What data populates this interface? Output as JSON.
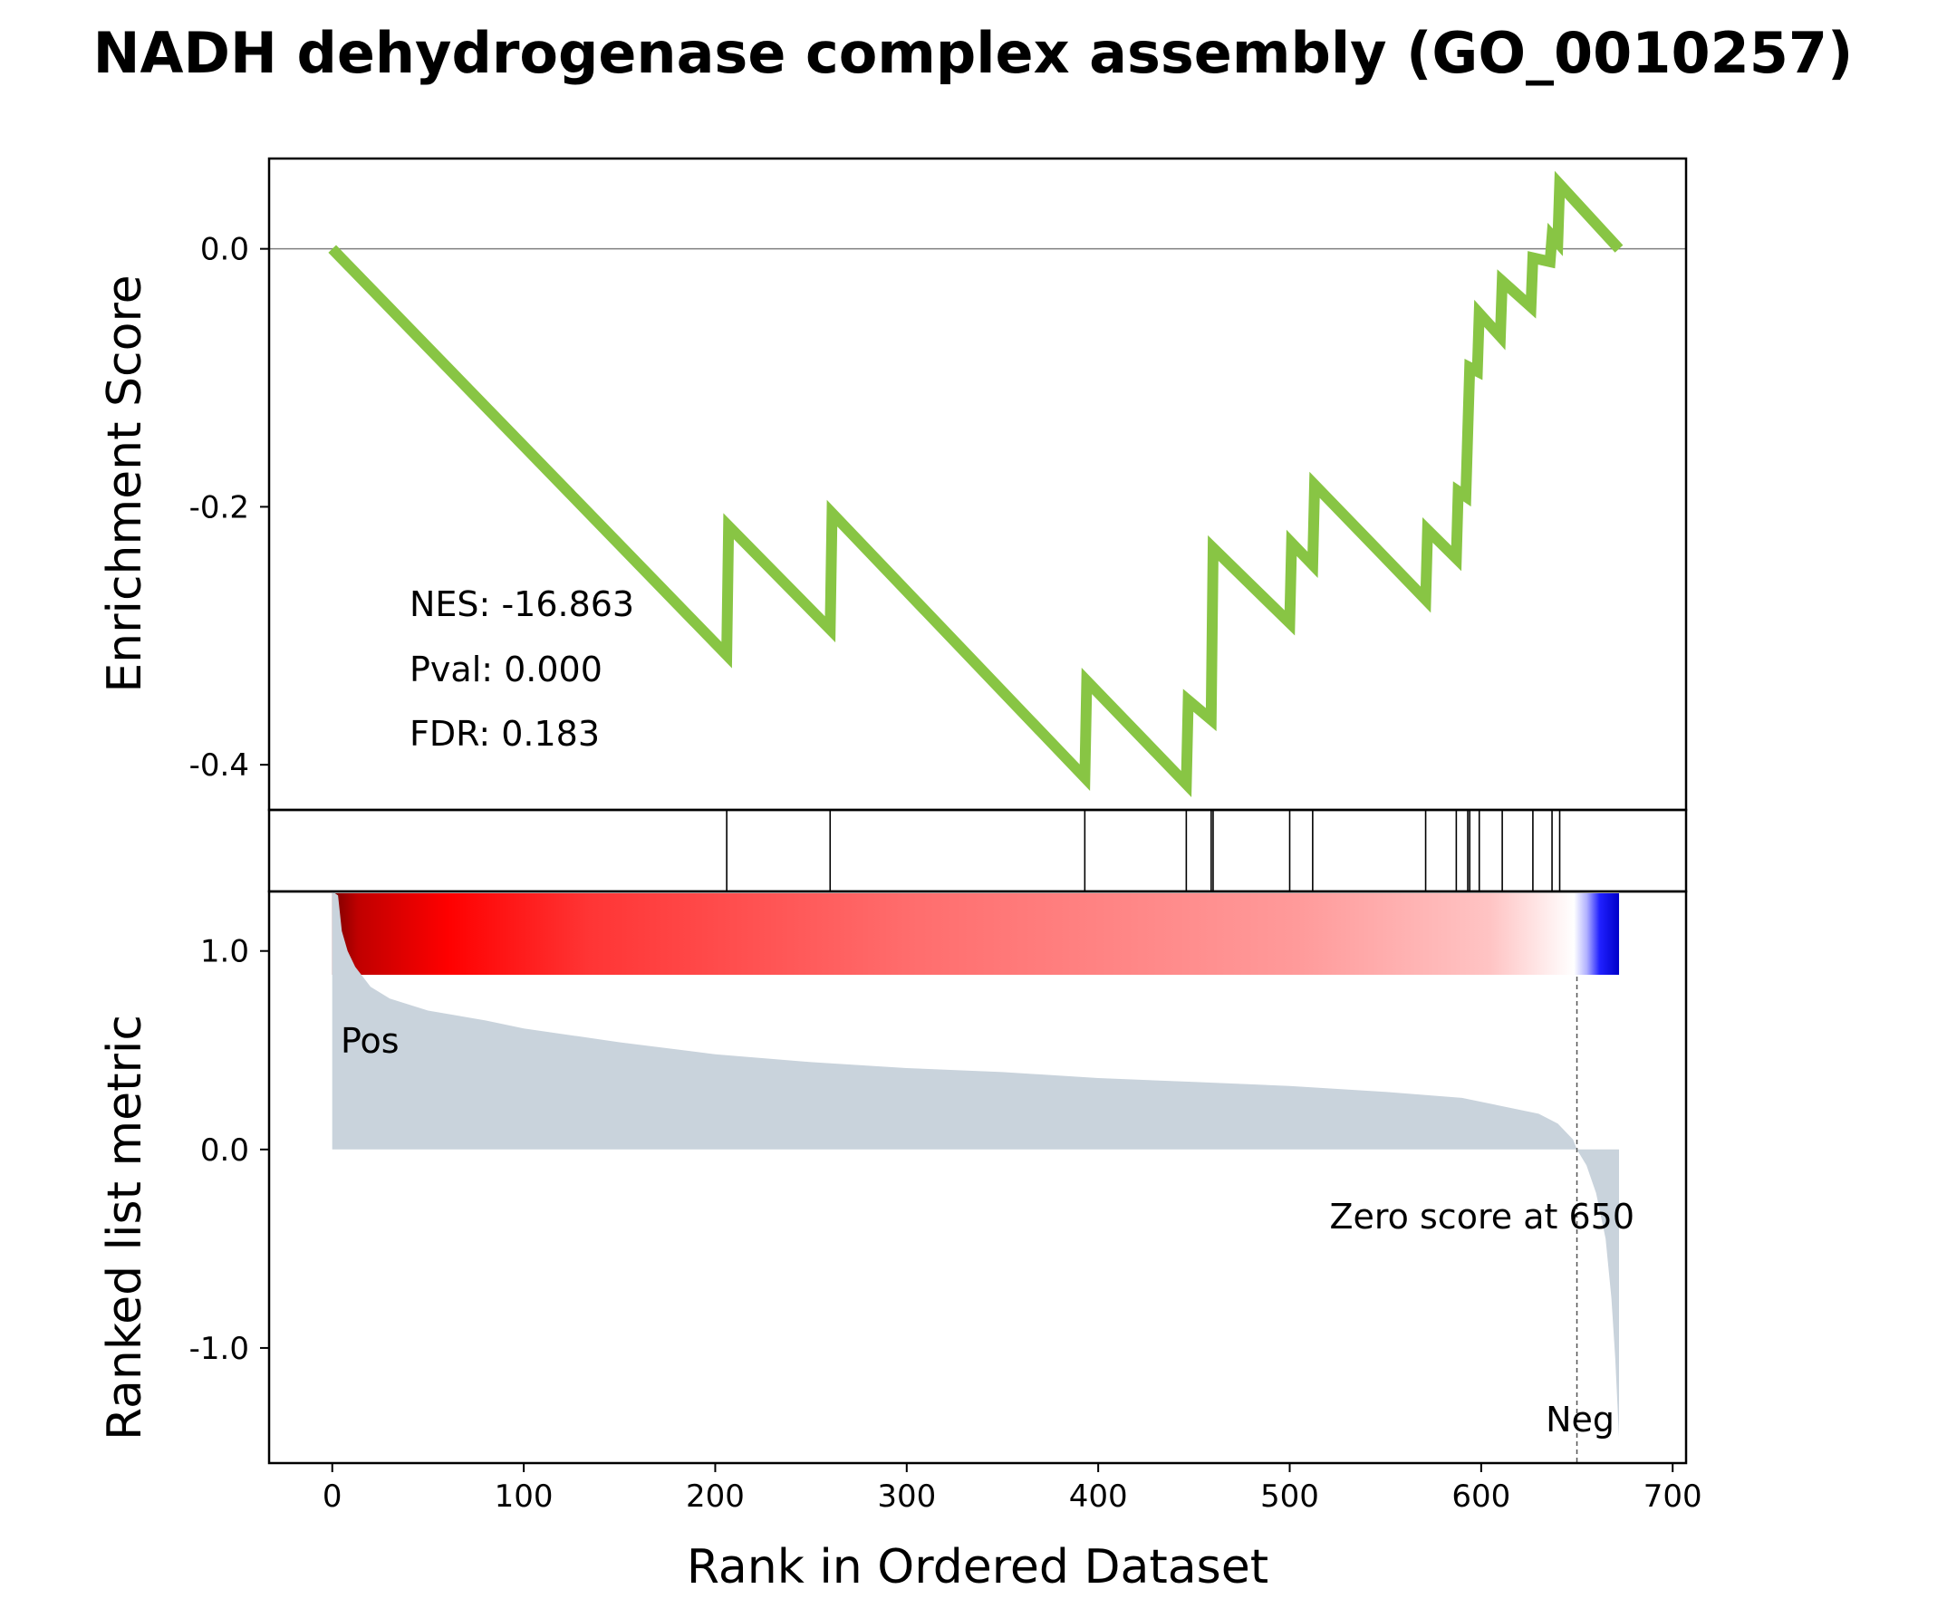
{
  "chart_data": {
    "type": "line",
    "title": "NADH dehydrogenase complex assembly (GO_0010257)",
    "xlabel": "Rank in Ordered Dataset",
    "xlim": [
      -33,
      707
    ],
    "x_ticks": [
      "0",
      "100",
      "200",
      "300",
      "400",
      "500",
      "600",
      "700"
    ],
    "x_tick_values": [
      0,
      100,
      200,
      300,
      400,
      500,
      600,
      700
    ],
    "colors": {
      "es_line": "#88c544",
      "metric_fill": "#c9d3dc",
      "pos_label": "#ff0000",
      "neg_label": "#0000ff"
    },
    "enrichment_panel": {
      "ylabel": "Enrichment Score",
      "ylim": [
        -0.435,
        0.07
      ],
      "y_ticks": [
        "0.0",
        "-0.2",
        "-0.4"
      ],
      "y_tick_values": [
        0.0,
        -0.2,
        -0.4
      ],
      "zero_line": true,
      "points": [
        [
          0,
          0.0
        ],
        [
          206,
          -0.315
        ],
        [
          207,
          -0.215
        ],
        [
          260,
          -0.295
        ],
        [
          261,
          -0.205
        ],
        [
          393,
          -0.41
        ],
        [
          394,
          -0.335
        ],
        [
          446,
          -0.415
        ],
        [
          447,
          -0.35
        ],
        [
          459,
          -0.365
        ],
        [
          460,
          -0.232
        ],
        [
          500,
          -0.29
        ],
        [
          501,
          -0.228
        ],
        [
          512,
          -0.245
        ],
        [
          513,
          -0.183
        ],
        [
          571,
          -0.272
        ],
        [
          572,
          -0.218
        ],
        [
          587,
          -0.24
        ],
        [
          588,
          -0.188
        ],
        [
          592,
          -0.192
        ],
        [
          593,
          -0.14
        ],
        [
          594,
          -0.092
        ],
        [
          598,
          -0.095
        ],
        [
          599,
          -0.05
        ],
        [
          610,
          -0.068
        ],
        [
          611,
          -0.025
        ],
        [
          626,
          -0.045
        ],
        [
          627,
          -0.007
        ],
        [
          636,
          -0.01
        ],
        [
          637,
          0.01
        ],
        [
          640,
          0.005
        ],
        [
          641,
          0.05
        ],
        [
          672,
          0.0
        ]
      ],
      "stats": [
        "NES: -16.863",
        "Pval: 0.000",
        "FDR: 0.183"
      ]
    },
    "hits_panel": {
      "hit_ranks": [
        206,
        260,
        393,
        446,
        459,
        460,
        500,
        512,
        571,
        587,
        593,
        594,
        599,
        611,
        627,
        637,
        641
      ]
    },
    "metric_panel": {
      "ylabel": "Ranked list metric",
      "ylim": [
        -1.58,
        1.3
      ],
      "y_ticks": [
        "1.0",
        "0.0",
        "-1.0"
      ],
      "y_tick_values": [
        1.0,
        0.0,
        -1.0
      ],
      "n": 672,
      "profile": [
        [
          0,
          1.3
        ],
        [
          3,
          1.28
        ],
        [
          5,
          1.1
        ],
        [
          8,
          1.0
        ],
        [
          12,
          0.92
        ],
        [
          20,
          0.82
        ],
        [
          30,
          0.76
        ],
        [
          50,
          0.7
        ],
        [
          80,
          0.65
        ],
        [
          100,
          0.61
        ],
        [
          150,
          0.54
        ],
        [
          200,
          0.48
        ],
        [
          250,
          0.44
        ],
        [
          300,
          0.41
        ],
        [
          350,
          0.39
        ],
        [
          400,
          0.36
        ],
        [
          450,
          0.34
        ],
        [
          500,
          0.32
        ],
        [
          550,
          0.29
        ],
        [
          590,
          0.26
        ],
        [
          610,
          0.22
        ],
        [
          630,
          0.18
        ],
        [
          640,
          0.13
        ],
        [
          648,
          0.05
        ],
        [
          650,
          0.0
        ],
        [
          655,
          -0.08
        ],
        [
          660,
          -0.22
        ],
        [
          665,
          -0.45
        ],
        [
          668,
          -0.75
        ],
        [
          670,
          -1.05
        ],
        [
          672,
          -1.45
        ]
      ],
      "pos_label": "Pos",
      "neg_label": "Neg",
      "zero_score_rank": 650,
      "zero_score_label": "Zero score at 650"
    }
  }
}
